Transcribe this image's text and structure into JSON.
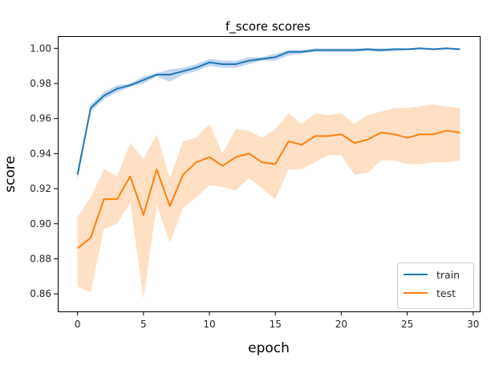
{
  "chart_data": {
    "type": "line",
    "title": "f_score scores",
    "xlabel": "epoch",
    "ylabel": "score",
    "xlim": [
      -1.5,
      30.5
    ],
    "ylim": [
      0.85,
      1.007
    ],
    "xticks": [
      0,
      5,
      10,
      15,
      20,
      25,
      30
    ],
    "yticks": [
      0.86,
      0.88,
      0.9,
      0.92,
      0.94,
      0.96,
      0.98,
      1.0
    ],
    "ytick_labels": [
      "0.86",
      "0.88",
      "0.90",
      "0.92",
      "0.94",
      "0.96",
      "0.98",
      "1.00"
    ],
    "grid": false,
    "legend_position": "lower-right",
    "series": [
      {
        "name": "train",
        "color": "#1f77b4",
        "band_color": "#aec7e8",
        "x": [
          0,
          1,
          2,
          3,
          4,
          5,
          6,
          7,
          8,
          9,
          10,
          11,
          12,
          13,
          14,
          15,
          16,
          17,
          18,
          19,
          20,
          21,
          22,
          23,
          24,
          25,
          26,
          27,
          28,
          29
        ],
        "values": [
          0.928,
          0.966,
          0.973,
          0.977,
          0.979,
          0.982,
          0.985,
          0.985,
          0.987,
          0.989,
          0.992,
          0.991,
          0.991,
          0.993,
          0.994,
          0.995,
          0.998,
          0.998,
          0.999,
          0.999,
          0.999,
          0.999,
          0.9995,
          0.999,
          0.9995,
          0.9995,
          1.0,
          0.9995,
          1.0,
          0.9995
        ],
        "lower": [
          0.925,
          0.964,
          0.971,
          0.975,
          0.978,
          0.98,
          0.984,
          0.981,
          0.985,
          0.987,
          0.99,
          0.989,
          0.989,
          0.991,
          0.993,
          0.993,
          0.996,
          0.997,
          0.998,
          0.998,
          0.998,
          0.998,
          0.9985,
          0.998,
          0.9985,
          0.999,
          0.9995,
          0.999,
          0.9995,
          0.999
        ],
        "upper": [
          0.931,
          0.968,
          0.975,
          0.979,
          0.98,
          0.984,
          0.986,
          0.988,
          0.989,
          0.991,
          0.994,
          0.993,
          0.993,
          0.995,
          0.995,
          0.997,
          0.999,
          0.999,
          1.0,
          1.0,
          1.0,
          1.0,
          1.0,
          1.0,
          1.0,
          1.0,
          1.0,
          1.0,
          1.0,
          1.0
        ]
      },
      {
        "name": "test",
        "color": "#ff7f0e",
        "band_color": "#ffd5b2",
        "x": [
          0,
          1,
          2,
          3,
          4,
          5,
          6,
          7,
          8,
          9,
          10,
          11,
          12,
          13,
          14,
          15,
          16,
          17,
          18,
          19,
          20,
          21,
          22,
          23,
          24,
          25,
          26,
          27,
          28,
          29
        ],
        "values": [
          0.886,
          0.892,
          0.914,
          0.914,
          0.927,
          0.905,
          0.931,
          0.91,
          0.928,
          0.935,
          0.938,
          0.933,
          0.938,
          0.94,
          0.935,
          0.934,
          0.947,
          0.945,
          0.95,
          0.95,
          0.951,
          0.946,
          0.948,
          0.952,
          0.951,
          0.949,
          0.951,
          0.951,
          0.953,
          0.952
        ],
        "lower": [
          0.864,
          0.861,
          0.897,
          0.9,
          0.912,
          0.857,
          0.911,
          0.889,
          0.909,
          0.915,
          0.922,
          0.921,
          0.919,
          0.926,
          0.92,
          0.914,
          0.931,
          0.931,
          0.935,
          0.939,
          0.939,
          0.928,
          0.929,
          0.936,
          0.936,
          0.934,
          0.934,
          0.935,
          0.935,
          0.936
        ],
        "upper": [
          0.904,
          0.915,
          0.931,
          0.927,
          0.946,
          0.937,
          0.951,
          0.926,
          0.947,
          0.949,
          0.957,
          0.94,
          0.954,
          0.953,
          0.949,
          0.954,
          0.963,
          0.957,
          0.963,
          0.962,
          0.963,
          0.957,
          0.962,
          0.964,
          0.966,
          0.966,
          0.967,
          0.968,
          0.967,
          0.966
        ]
      }
    ]
  }
}
